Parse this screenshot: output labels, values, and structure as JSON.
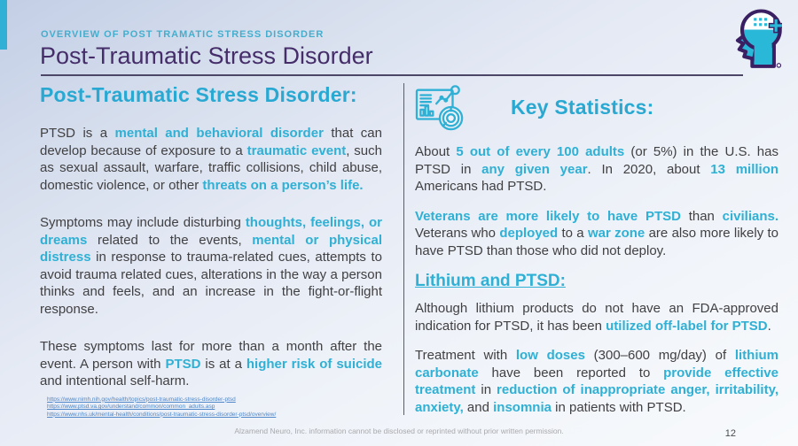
{
  "colors": {
    "accent_teal": "#2fb0d4",
    "heading_teal": "#29a8d2",
    "title_purple": "#452d69",
    "body_text": "#414042",
    "link_blue": "#4e86c8"
  },
  "header": {
    "eyebrow": "OVERVIEW OF POST TRAMATIC STRESS DISORDER",
    "title": "Post-Traumatic Stress Disorder",
    "logo_icon": "head-brain-plus-icon"
  },
  "left_column": {
    "heading": "Post-Traumatic Stress Disorder:",
    "paragraphs": [
      {
        "segments": [
          {
            "t": "PTSD is a "
          },
          {
            "t": "mental and behavioral disorder",
            "b": true
          },
          {
            "t": " that can develop because of exposure to a "
          },
          {
            "t": "traumatic event",
            "b": true
          },
          {
            "t": ", such as sexual assault, warfare, traffic collisions, child abuse, domestic violence, or other "
          },
          {
            "t": "threats on a person’s life.",
            "b": true
          }
        ]
      },
      {
        "segments": [
          {
            "t": "Symptoms may include disturbing "
          },
          {
            "t": "thoughts, feelings, or dreams",
            "b": true
          },
          {
            "t": " related to the events, "
          },
          {
            "t": "mental or physical distress",
            "b": true
          },
          {
            "t": " in response to trauma-related cues, attempts to avoid trauma related cues, alterations in the way a person thinks and feels, and an increase in the fight-or-flight response."
          }
        ]
      },
      {
        "segments": [
          {
            "t": "These symptoms last for more than a month after the event. A person with "
          },
          {
            "t": "PTSD",
            "b": true
          },
          {
            "t": " is at a "
          },
          {
            "t": "higher risk of suicide",
            "b": true
          },
          {
            "t": " and intentional self-harm."
          }
        ]
      }
    ],
    "source_links": [
      "https://www.nimh.nih.gov/health/topics/post-traumatic-stress-disorder-ptsd",
      "https://www.ptsd.va.gov/understand/common/common_adults.asp",
      "https://www.nhs.uk/mental-health/conditions/post-traumatic-stress-disorder-ptsd/overview/"
    ]
  },
  "right_column": {
    "heading": "Key Statistics:",
    "icon": "statistics-chart-icon",
    "paragraphs": [
      {
        "segments": [
          {
            "t": "About "
          },
          {
            "t": "5 out of every 100 adults",
            "b": true
          },
          {
            "t": " (or 5%) in the U.S. has PTSD in "
          },
          {
            "t": "any given year",
            "b": true
          },
          {
            "t": ". In 2020, about "
          },
          {
            "t": "13 million",
            "b": true
          },
          {
            "t": " Americans had PTSD."
          }
        ]
      },
      {
        "segments": [
          {
            "t": "Veterans are more likely to have PTSD",
            "b": true
          },
          {
            "t": " than "
          },
          {
            "t": "civilians.",
            "b": true
          },
          {
            "t": " Veterans who "
          },
          {
            "t": "deployed",
            "b": true
          },
          {
            "t": " to a "
          },
          {
            "t": "war zone",
            "b": true
          },
          {
            "t": " are also more likely to have PTSD than those who did not deploy."
          }
        ]
      }
    ],
    "subheading": "Lithium and PTSD:",
    "lithium_paragraphs": [
      {
        "segments": [
          {
            "t": "Although lithium products do not have an FDA-approved indication for PTSD, it has been "
          },
          {
            "t": "utilized off-label for PTSD",
            "b": true
          },
          {
            "t": "."
          }
        ]
      },
      {
        "segments": [
          {
            "t": "Treatment with "
          },
          {
            "t": "low doses",
            "b": true
          },
          {
            "t": " (300–600 mg/day) of "
          },
          {
            "t": "lithium carbonate",
            "b": true
          },
          {
            "t": " have been reported to "
          },
          {
            "t": "provide effective treatment",
            "b": true
          },
          {
            "t": " in "
          },
          {
            "t": "reduction of inappropriate anger, irritability, anxiety,",
            "b": true
          },
          {
            "t": " and "
          },
          {
            "t": "insomnia",
            "b": true
          },
          {
            "t": " in patients with PTSD."
          }
        ]
      }
    ]
  },
  "footer": {
    "disclaimer": "Alzamend Neuro, Inc. information cannot be disclosed or reprinted without prior written permission.",
    "page_number": "12"
  }
}
